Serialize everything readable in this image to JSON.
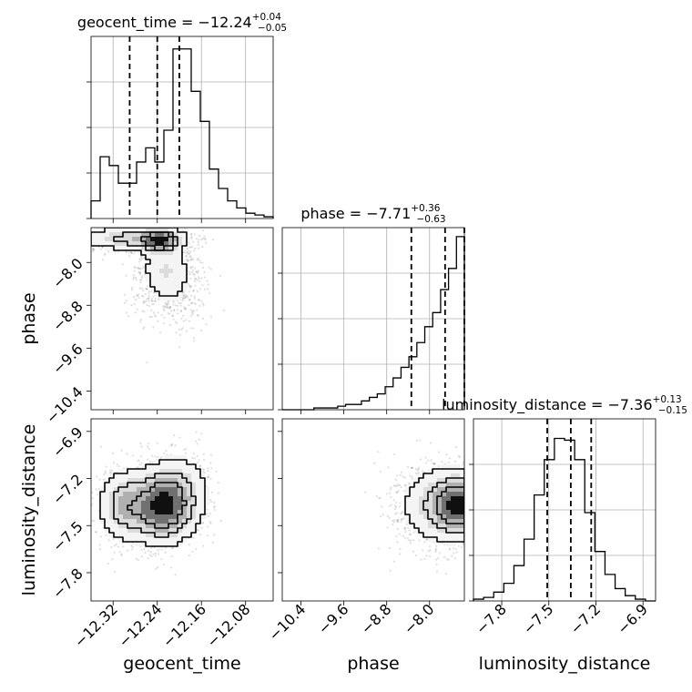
{
  "chart_data": {
    "type": "corner",
    "grid": true,
    "parameters": [
      {
        "name": "geocent_time",
        "axis_label": "geocent_time",
        "title_main": "geocent_time = −12.24",
        "title_sup": "+0.04",
        "title_sub": "−0.05",
        "median": -12.24,
        "quantile_lo": -12.29,
        "quantile_hi": -12.2,
        "range": [
          -12.36,
          -12.03
        ],
        "ticks": [
          -12.32,
          -12.24,
          -12.16,
          -12.08
        ],
        "tick_labels": [
          "−12.32",
          "−12.24",
          "−12.16",
          "−12.08"
        ],
        "hist_values": [
          0.1,
          0.35,
          0.3,
          0.2,
          0.2,
          0.32,
          0.4,
          0.32,
          0.5,
          0.96,
          0.96,
          0.72,
          0.55,
          0.28,
          0.17,
          0.1,
          0.06,
          0.03,
          0.02,
          0.01
        ]
      },
      {
        "name": "phase",
        "axis_label": "phase",
        "title_main": "phase = −7.71",
        "title_sup": "+0.36",
        "title_sub": "−0.63",
        "median": -7.71,
        "quantile_lo": -8.34,
        "quantile_hi": -7.35,
        "range": [
          -10.75,
          -7.35
        ],
        "ticks": [
          -10.4,
          -9.6,
          -8.8,
          -8.0
        ],
        "tick_labels": [
          "−10.4",
          "−9.6",
          "−8.8",
          "−8.0"
        ],
        "hist_values": [
          0.0,
          0.0,
          0.0,
          0.0,
          0.01,
          0.01,
          0.01,
          0.02,
          0.03,
          0.03,
          0.05,
          0.07,
          0.09,
          0.13,
          0.18,
          0.24,
          0.3,
          0.38,
          0.47,
          0.55,
          0.68,
          0.8,
          0.98
        ]
      },
      {
        "name": "luminosity_distance",
        "axis_label": "luminosity_distance",
        "title_main": "luminosity_distance = −7.36",
        "title_sup": "+0.13",
        "title_sub": "−0.15",
        "median": -7.36,
        "quantile_lo": -7.51,
        "quantile_hi": -7.23,
        "range": [
          -7.98,
          -6.82
        ],
        "ticks": [
          -7.8,
          -7.5,
          -7.2,
          -6.9
        ],
        "tick_labels": [
          "−7.8",
          "−7.5",
          "−7.2",
          "−6.9"
        ],
        "hist_values": [
          0.01,
          0.02,
          0.05,
          0.1,
          0.2,
          0.35,
          0.6,
          0.8,
          0.92,
          0.91,
          0.8,
          0.5,
          0.28,
          0.15,
          0.07,
          0.03,
          0.01,
          0.0
        ]
      }
    ],
    "pairs": [
      {
        "x": "geocent_time",
        "y": "phase",
        "modes": [
          {
            "mx": -12.285,
            "my": -7.55,
            "sx": 0.05,
            "sy": 0.12,
            "w": 0.45
          },
          {
            "mx": -12.235,
            "my": -7.6,
            "sx": 0.02,
            "sy": 0.12,
            "w": 0.35
          },
          {
            "mx": -12.225,
            "my": -8.1,
            "sx": 0.025,
            "sy": 0.3,
            "w": 0.3
          },
          {
            "mx": -12.21,
            "my": -8.6,
            "sx": 0.035,
            "sy": 0.35,
            "w": 0.15
          }
        ]
      },
      {
        "x": "geocent_time",
        "y": "luminosity_distance",
        "modes": [
          {
            "mx": -12.235,
            "my": -7.38,
            "sx": 0.03,
            "sy": 0.12,
            "w": 0.6
          },
          {
            "mx": -12.3,
            "my": -7.37,
            "sx": 0.025,
            "sy": 0.12,
            "w": 0.25
          },
          {
            "mx": -12.2,
            "my": -7.3,
            "sx": 0.03,
            "sy": 0.14,
            "w": 0.25
          }
        ]
      },
      {
        "x": "phase",
        "y": "luminosity_distance",
        "modes": [
          {
            "mx": -7.45,
            "my": -7.37,
            "sx": 0.3,
            "sy": 0.1,
            "w": 0.6
          },
          {
            "mx": -7.8,
            "my": -7.37,
            "sx": 0.45,
            "sy": 0.14,
            "w": 0.4
          }
        ]
      }
    ]
  }
}
